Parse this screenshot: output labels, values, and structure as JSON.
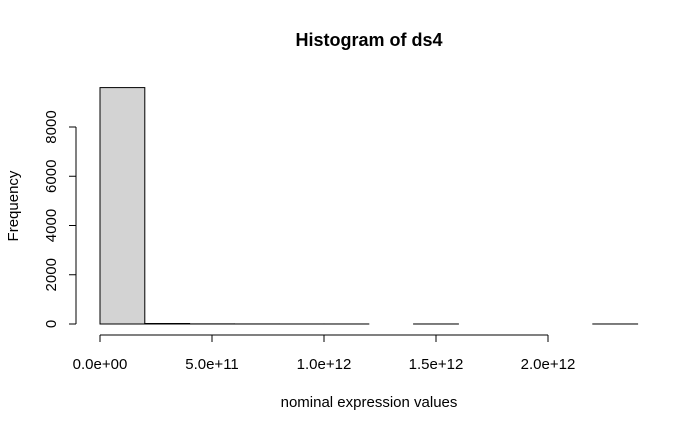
{
  "chart_data": {
    "type": "bar",
    "subtype": "histogram",
    "title": "Histogram of ds4",
    "xlabel": "nominal expression values",
    "ylabel": "Frequency",
    "bins": [
      {
        "start": 0,
        "end": 200000000000,
        "count": 9600
      },
      {
        "start": 200000000000,
        "end": 400000000000,
        "count": 20
      },
      {
        "start": 400000000000,
        "end": 600000000000,
        "count": 5
      },
      {
        "start": 600000000000,
        "end": 800000000000,
        "count": 2
      },
      {
        "start": 800000000000,
        "end": 1000000000000,
        "count": 1
      },
      {
        "start": 1000000000000,
        "end": 1200000000000,
        "count": 1
      },
      {
        "start": 1200000000000,
        "end": 1400000000000,
        "count": 0
      },
      {
        "start": 1400000000000,
        "end": 1600000000000,
        "count": 1
      },
      {
        "start": 1600000000000,
        "end": 1800000000000,
        "count": 0
      },
      {
        "start": 1800000000000,
        "end": 2000000000000,
        "count": 0
      },
      {
        "start": 2000000000000,
        "end": 2200000000000,
        "count": 0
      },
      {
        "start": 2200000000000,
        "end": 2400000000000,
        "count": 1
      }
    ],
    "xlim": [
      0,
      2400000000000
    ],
    "ylim": [
      0,
      9600
    ],
    "x_ticks": [
      {
        "value": 0,
        "label": "0.0e+00"
      },
      {
        "value": 500000000000,
        "label": "5.0e+11"
      },
      {
        "value": 1000000000000,
        "label": "1.0e+12"
      },
      {
        "value": 1500000000000,
        "label": "1.5e+12"
      },
      {
        "value": 2000000000000,
        "label": "2.0e+12"
      }
    ],
    "y_ticks": [
      {
        "value": 0,
        "label": "0"
      },
      {
        "value": 2000,
        "label": "2000"
      },
      {
        "value": 4000,
        "label": "4000"
      },
      {
        "value": 6000,
        "label": "6000"
      },
      {
        "value": 8000,
        "label": "8000"
      }
    ],
    "grid": false,
    "colors": {
      "bar_fill": "#d3d3d3",
      "bar_stroke": "#000000"
    }
  }
}
